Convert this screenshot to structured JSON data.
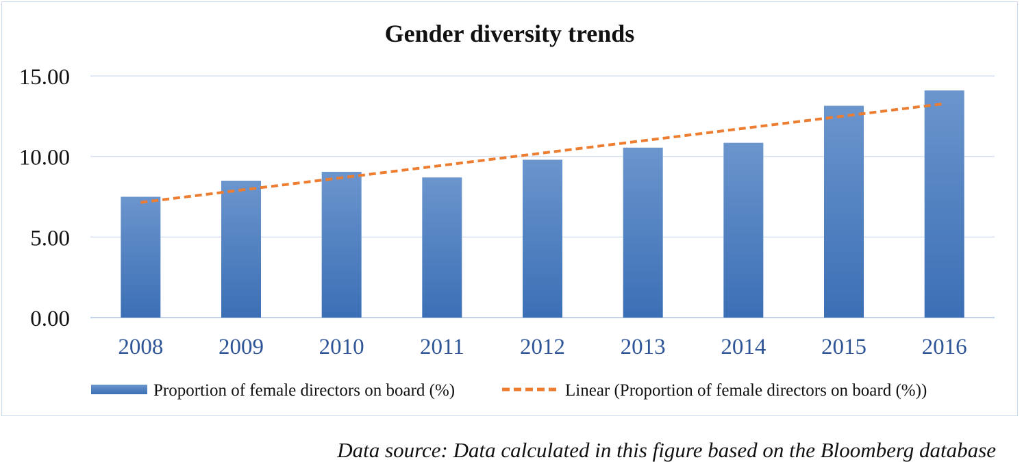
{
  "chart_data": {
    "type": "bar",
    "title": "Gender diversity trends",
    "categories": [
      "2008",
      "2009",
      "2010",
      "2011",
      "2012",
      "2013",
      "2014",
      "2015",
      "2016"
    ],
    "series": [
      {
        "name": "Proportion of female directors on board (%)",
        "type": "bar",
        "values": [
          7.5,
          8.5,
          9.05,
          8.7,
          9.8,
          10.55,
          10.85,
          13.15,
          14.1
        ],
        "color": "#4a7fc1"
      },
      {
        "name": "Linear (Proportion of female directors on board (%))",
        "type": "trendline-linear",
        "values": [
          7.15,
          7.92,
          8.68,
          9.45,
          10.21,
          10.98,
          11.74,
          12.51,
          13.28
        ],
        "color": "#ed7d31",
        "dashed": true
      }
    ],
    "ylim": [
      0,
      15
    ],
    "y_ticks": [
      "0.00",
      "5.00",
      "10.00",
      "15.00"
    ],
    "grid": true,
    "legend_position": "bottom",
    "xlabel": "",
    "ylabel": ""
  },
  "footnote": "Data source: Data calculated in this figure based on the Bloomberg database"
}
